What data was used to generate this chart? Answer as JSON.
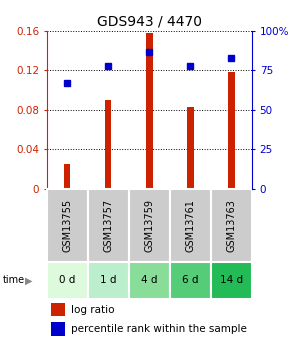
{
  "title": "GDS943 / 4470",
  "samples": [
    "GSM13755",
    "GSM13757",
    "GSM13759",
    "GSM13761",
    "GSM13763"
  ],
  "time_labels": [
    "0 d",
    "1 d",
    "4 d",
    "6 d",
    "14 d"
  ],
  "log_ratio": [
    0.025,
    0.09,
    0.158,
    0.083,
    0.118
  ],
  "percentile_rank": [
    67,
    78,
    87,
    78,
    83
  ],
  "bar_color": "#cc2200",
  "square_color": "#0000cc",
  "ylim_left": [
    0,
    0.16
  ],
  "ylim_right": [
    0,
    100
  ],
  "yticks_left": [
    0,
    0.04,
    0.08,
    0.12,
    0.16
  ],
  "ytick_labels_left": [
    "0",
    "0.04",
    "0.08",
    "0.12",
    "0.16"
  ],
  "yticks_right": [
    0,
    25,
    50,
    75,
    100
  ],
  "ytick_labels_right": [
    "0",
    "25",
    "50",
    "75",
    "100%"
  ],
  "bg_color_main": "#ffffff",
  "bg_color_gsm": "#cccccc",
  "time_green_shades": [
    "#ddfadd",
    "#bbeecc",
    "#88dd99",
    "#55cc77",
    "#22bb55"
  ],
  "title_fontsize": 10,
  "tick_fontsize": 7.5,
  "legend_fontsize": 7.5,
  "bar_width": 0.15
}
